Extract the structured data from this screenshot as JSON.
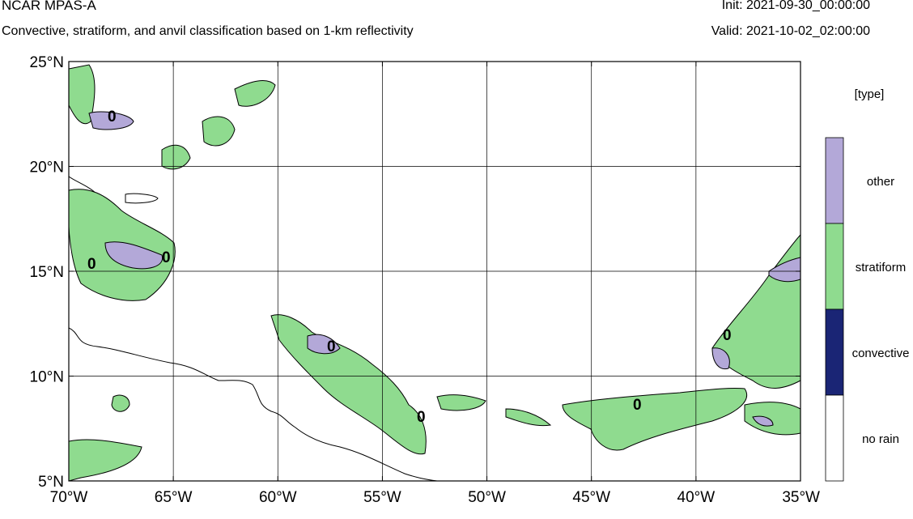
{
  "header": {
    "title": "NCAR MPAS-A",
    "subtitle": "Convective, stratiform, and anvil classification based on 1-km reflectivity",
    "init": "Init: 2021-09-30_00:00:00",
    "valid": "Valid: 2021-10-02_02:00:00"
  },
  "map": {
    "lon_range": [
      -70,
      -35
    ],
    "lat_range": [
      5,
      25
    ],
    "lat_ticks": [
      {
        "value": 25,
        "label": "25°N"
      },
      {
        "value": 20,
        "label": "20°N"
      },
      {
        "value": 15,
        "label": "15°N"
      },
      {
        "value": 10,
        "label": "10°N"
      },
      {
        "value": 5,
        "label": "5°N"
      }
    ],
    "lon_ticks": [
      {
        "value": -70,
        "label": "70°W"
      },
      {
        "value": -65,
        "label": "65°W"
      },
      {
        "value": -60,
        "label": "60°W"
      },
      {
        "value": -55,
        "label": "55°W"
      },
      {
        "value": -50,
        "label": "50°W"
      },
      {
        "value": -45,
        "label": "45°W"
      },
      {
        "value": -40,
        "label": "40°W"
      },
      {
        "value": -35,
        "label": "35°W"
      }
    ],
    "gridlines": true,
    "contour_label": "0"
  },
  "legend": {
    "title": "[type]",
    "categories": [
      {
        "label": "other",
        "color": "#b3a8d8"
      },
      {
        "label": "stratiform",
        "color": "#8fdb8f"
      },
      {
        "label": "convective",
        "color": "#1a2575"
      },
      {
        "label": "no rain",
        "color": "#ffffff"
      }
    ]
  }
}
